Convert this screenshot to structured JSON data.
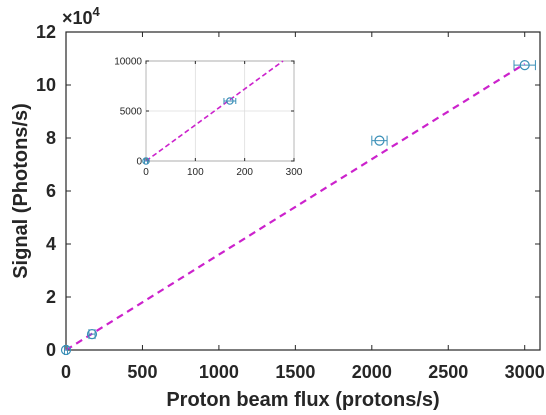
{
  "chart_data": [
    {
      "type": "scatter",
      "xlabel": "Proton beam flux (protons/s)",
      "ylabel": "Signal (Photons/s)",
      "xlim": [
        0,
        3100
      ],
      "ylim": [
        0,
        120000
      ],
      "x_ticks": [
        0,
        500,
        1000,
        1500,
        2000,
        2500,
        3000
      ],
      "y_ticks": [
        0,
        20000,
        40000,
        60000,
        80000,
        100000,
        120000
      ],
      "y_tick_labels": [
        "0",
        "2",
        "4",
        "6",
        "8",
        "10",
        "12"
      ],
      "y_multiplier_base": "×10",
      "y_multiplier_exp": "4",
      "grid": false,
      "points": [
        {
          "x": 0,
          "y": 0,
          "xerr": 10
        },
        {
          "x": 170,
          "y": 6000,
          "xerr": 20
        },
        {
          "x": 2050,
          "y": 79000,
          "xerr": 50
        },
        {
          "x": 3000,
          "y": 107500,
          "xerr": 70
        }
      ],
      "fit_line": {
        "x": [
          0,
          3000
        ],
        "y": [
          0,
          108000
        ],
        "color": "#cc22cc",
        "style": "dashed"
      },
      "marker_color": "#3a8fb7"
    },
    {
      "type": "scatter",
      "xlim": [
        0,
        300
      ],
      "ylim": [
        0,
        10000
      ],
      "x_ticks": [
        0,
        100,
        200,
        300
      ],
      "y_ticks": [
        0,
        5000,
        10000
      ],
      "grid": true,
      "points": [
        {
          "x": 0,
          "y": 0,
          "xerr": 3
        },
        {
          "x": 170,
          "y": 6000,
          "xerr": 12
        }
      ],
      "fit_line": {
        "x": [
          0,
          300
        ],
        "y": [
          0,
          10800
        ],
        "color": "#cc22cc",
        "style": "dashed"
      },
      "marker_color": "#3a8fb7"
    }
  ]
}
